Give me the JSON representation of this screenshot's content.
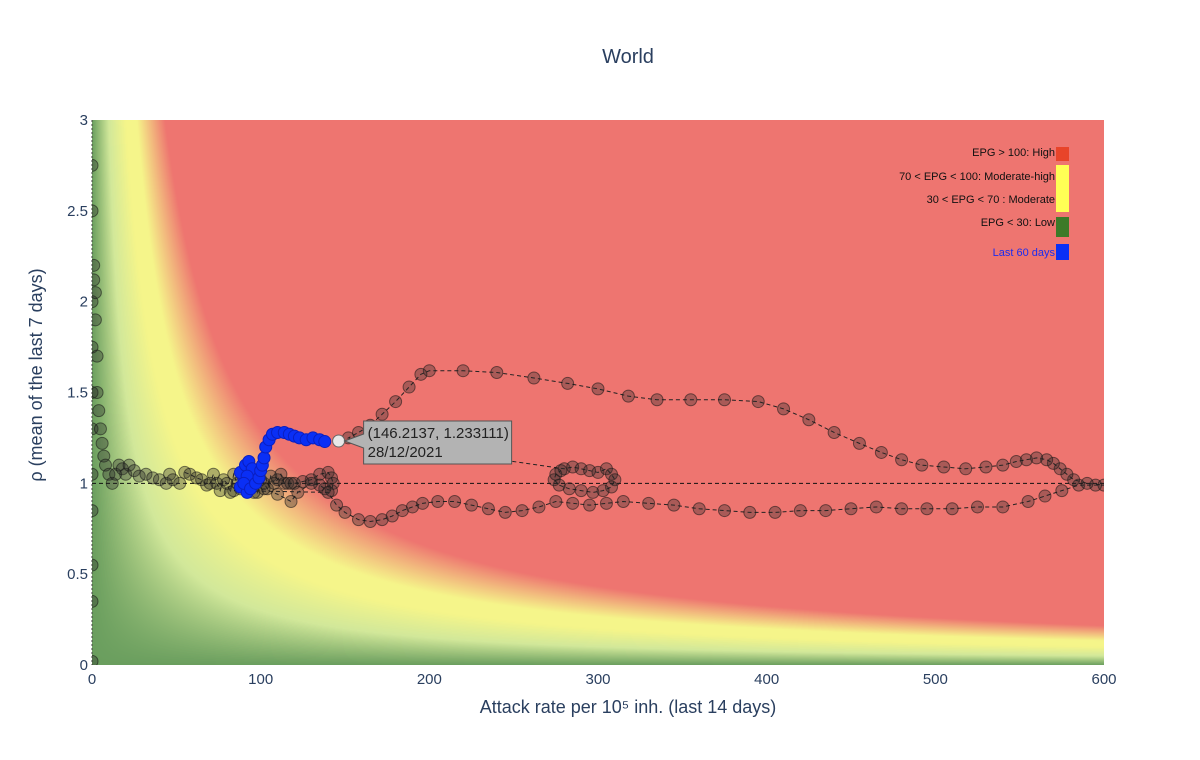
{
  "chart_data": {
    "type": "scatter",
    "title": "World",
    "xlabel": "Attack rate per 10⁵ inh. (last 14 days)",
    "ylabel": "ρ (mean of the last 7 days)",
    "xlim": [
      0,
      600
    ],
    "ylim": [
      0,
      3
    ],
    "x_ticks": [
      "0",
      "100",
      "200",
      "300",
      "400",
      "500",
      "600"
    ],
    "y_ticks": [
      "0",
      "0.5",
      "1",
      "1.5",
      "2",
      "2.5",
      "3"
    ],
    "background": "EPG risk zones (EPG = attack rate × ρ)",
    "reference_line": {
      "y": 1,
      "style": "dashed"
    },
    "colors": {
      "high": "#ee7570",
      "moderate_high": "#f5f58a",
      "moderate": "#d2e89a",
      "low": "#6a9e5e",
      "history_marker": "rgba(40,40,40,0.35)",
      "last60_marker": "#0a2ff5",
      "legend_high": "#e8442a",
      "legend_moderate_high": "#ffff55",
      "legend_low": "#3c7a28",
      "legend_last60": "#0a2ff5"
    },
    "legend": {
      "placement": "top-right",
      "items": [
        {
          "label": "EPG > 100: High",
          "color": "#e8442a"
        },
        {
          "label": "70 < EPG < 100: Moderate-high",
          "color": "#ffff55"
        },
        {
          "label": "30 < EPG < 70 : Moderate",
          "color": "#ffff55"
        },
        {
          "label": "EPG < 30: Low",
          "color": "#3c7a28"
        },
        {
          "label": "Last 60 days",
          "color": "#0a2ff5"
        }
      ]
    },
    "series": [
      {
        "role": "history",
        "points": [
          [
            0,
            0.02
          ],
          [
            0,
            0.35
          ],
          [
            0,
            0.55
          ],
          [
            0,
            0.85
          ],
          [
            0,
            1.05
          ],
          [
            0,
            1.3
          ],
          [
            0,
            1.5
          ],
          [
            0,
            1.75
          ],
          [
            0,
            2.0
          ],
          [
            0,
            2.5
          ],
          [
            0,
            2.75
          ],
          [
            1,
            2.2
          ],
          [
            1,
            2.12
          ],
          [
            2,
            2.05
          ],
          [
            2,
            1.9
          ],
          [
            3,
            1.7
          ],
          [
            3,
            1.5
          ],
          [
            4,
            1.4
          ],
          [
            5,
            1.3
          ],
          [
            6,
            1.22
          ],
          [
            7,
            1.15
          ],
          [
            8,
            1.1
          ],
          [
            10,
            1.05
          ],
          [
            12,
            1.0
          ],
          [
            14,
            1.05
          ],
          [
            16,
            1.1
          ],
          [
            18,
            1.08
          ],
          [
            20,
            1.05
          ],
          [
            22,
            1.1
          ],
          [
            25,
            1.07
          ],
          [
            28,
            1.04
          ],
          [
            32,
            1.05
          ],
          [
            36,
            1.03
          ],
          [
            40,
            1.02
          ],
          [
            44,
            1.0
          ],
          [
            46,
            1.05
          ],
          [
            48,
            1.02
          ],
          [
            52,
            1.0
          ],
          [
            55,
            1.06
          ],
          [
            58,
            1.05
          ],
          [
            62,
            1.03
          ],
          [
            65,
            1.02
          ],
          [
            68,
            0.99
          ],
          [
            70,
            1.0
          ],
          [
            72,
            1.05
          ],
          [
            74,
            1.0
          ],
          [
            76,
            0.96
          ],
          [
            78,
            1.02
          ],
          [
            80,
            1.0
          ],
          [
            82,
            0.95
          ],
          [
            84,
            1.05
          ],
          [
            86,
            1.0
          ],
          [
            88,
            0.97
          ],
          [
            90,
            1.03
          ],
          [
            92,
            1.0
          ],
          [
            94,
            1.06
          ],
          [
            96,
            1.0
          ],
          [
            98,
            0.95
          ],
          [
            100,
            1.02
          ],
          [
            102,
            1.0
          ],
          [
            104,
            0.97
          ],
          [
            106,
            1.04
          ],
          [
            108,
            1.0
          ],
          [
            110,
            1.02
          ],
          [
            112,
            1.05
          ],
          [
            114,
            1.0
          ],
          [
            116,
            1.0
          ],
          [
            118,
            1.0
          ],
          [
            120,
            1.0
          ],
          [
            125,
            1.01
          ],
          [
            130,
            1.02
          ],
          [
            135,
            1.05
          ],
          [
            140,
            1.06
          ],
          [
            142,
            1.03
          ],
          [
            143,
            1.0
          ],
          [
            142,
            0.96
          ],
          [
            138,
            0.97
          ],
          [
            135,
            0.99
          ],
          [
            130,
            1.0
          ],
          [
            122,
            0.95
          ],
          [
            118,
            0.9
          ],
          [
            110,
            0.94
          ],
          [
            102,
            0.97
          ],
          [
            96,
            0.95
          ],
          [
            90,
            0.98
          ],
          [
            84,
            0.96
          ],
          [
            140,
            0.95
          ],
          [
            145,
            0.88
          ],
          [
            150,
            0.84
          ],
          [
            158,
            0.8
          ],
          [
            165,
            0.79
          ],
          [
            172,
            0.8
          ],
          [
            178,
            0.82
          ],
          [
            184,
            0.85
          ],
          [
            190,
            0.87
          ],
          [
            196,
            0.89
          ],
          [
            205,
            0.9
          ],
          [
            215,
            0.9
          ],
          [
            225,
            0.88
          ],
          [
            235,
            0.86
          ],
          [
            245,
            0.84
          ],
          [
            255,
            0.85
          ],
          [
            265,
            0.87
          ],
          [
            275,
            0.9
          ],
          [
            285,
            0.89
          ],
          [
            295,
            0.88
          ],
          [
            305,
            0.89
          ],
          [
            315,
            0.9
          ],
          [
            330,
            0.89
          ],
          [
            345,
            0.88
          ],
          [
            360,
            0.86
          ],
          [
            375,
            0.85
          ],
          [
            390,
            0.84
          ],
          [
            405,
            0.84
          ],
          [
            420,
            0.85
          ],
          [
            435,
            0.85
          ],
          [
            450,
            0.86
          ],
          [
            465,
            0.87
          ],
          [
            480,
            0.86
          ],
          [
            495,
            0.86
          ],
          [
            510,
            0.86
          ],
          [
            525,
            0.87
          ],
          [
            540,
            0.87
          ],
          [
            555,
            0.9
          ],
          [
            565,
            0.93
          ],
          [
            575,
            0.96
          ],
          [
            585,
            0.99
          ],
          [
            595,
            0.99
          ],
          [
            600,
            0.99
          ],
          [
            590,
            1.0
          ],
          [
            582,
            1.02
          ],
          [
            578,
            1.05
          ],
          [
            574,
            1.08
          ],
          [
            570,
            1.11
          ],
          [
            566,
            1.13
          ],
          [
            560,
            1.14
          ],
          [
            554,
            1.13
          ],
          [
            548,
            1.12
          ],
          [
            540,
            1.1
          ],
          [
            530,
            1.09
          ],
          [
            518,
            1.08
          ],
          [
            505,
            1.09
          ],
          [
            492,
            1.1
          ],
          [
            480,
            1.13
          ],
          [
            468,
            1.17
          ],
          [
            455,
            1.22
          ],
          [
            440,
            1.28
          ],
          [
            425,
            1.35
          ],
          [
            410,
            1.41
          ],
          [
            395,
            1.45
          ],
          [
            375,
            1.46
          ],
          [
            355,
            1.46
          ],
          [
            335,
            1.46
          ],
          [
            318,
            1.48
          ],
          [
            300,
            1.52
          ],
          [
            282,
            1.55
          ],
          [
            262,
            1.58
          ],
          [
            240,
            1.61
          ],
          [
            220,
            1.62
          ],
          [
            200,
            1.62
          ],
          [
            195,
            1.6
          ],
          [
            188,
            1.53
          ],
          [
            180,
            1.45
          ],
          [
            172,
            1.38
          ],
          [
            165,
            1.32
          ],
          [
            158,
            1.28
          ],
          [
            152,
            1.25
          ],
          [
            280,
            1.08
          ],
          [
            285,
            1.09
          ],
          [
            290,
            1.08
          ],
          [
            295,
            1.07
          ],
          [
            300,
            1.06
          ],
          [
            305,
            1.08
          ],
          [
            308,
            1.05
          ],
          [
            310,
            1.02
          ],
          [
            308,
            0.98
          ],
          [
            303,
            0.96
          ],
          [
            297,
            0.95
          ],
          [
            290,
            0.96
          ],
          [
            283,
            0.97
          ],
          [
            277,
            0.99
          ],
          [
            274,
            1.02
          ],
          [
            275,
            1.05
          ],
          [
            278,
            1.07
          ]
        ]
      },
      {
        "role": "last60",
        "name": "Last 60 days",
        "points": [
          [
            88,
            0.98
          ],
          [
            90,
            1.02
          ],
          [
            92,
            0.95
          ],
          [
            88,
            1.06
          ],
          [
            91,
            1.1
          ],
          [
            93,
            1.12
          ],
          [
            95,
            1.08
          ],
          [
            92,
            1.04
          ],
          [
            90,
            1.0
          ],
          [
            94,
            0.97
          ],
          [
            97,
            1.0
          ],
          [
            99,
            1.03
          ],
          [
            100,
            1.07
          ],
          [
            101,
            1.1
          ],
          [
            102,
            1.14
          ],
          [
            103,
            1.2
          ],
          [
            105,
            1.24
          ],
          [
            107,
            1.27
          ],
          [
            110,
            1.28
          ],
          [
            114,
            1.28
          ],
          [
            117,
            1.27
          ],
          [
            120,
            1.26
          ],
          [
            123,
            1.25
          ],
          [
            127,
            1.24
          ],
          [
            131,
            1.25
          ],
          [
            135,
            1.24
          ],
          [
            138,
            1.23
          ]
        ]
      },
      {
        "role": "hover",
        "points": [
          [
            146.2137,
            1.233111
          ]
        ]
      }
    ],
    "annotations": [
      {
        "type": "hover",
        "x": 146.2137,
        "y": 1.233111,
        "line1": "(146.2137, 1.233111)",
        "line2": "28/12/2021"
      }
    ]
  }
}
